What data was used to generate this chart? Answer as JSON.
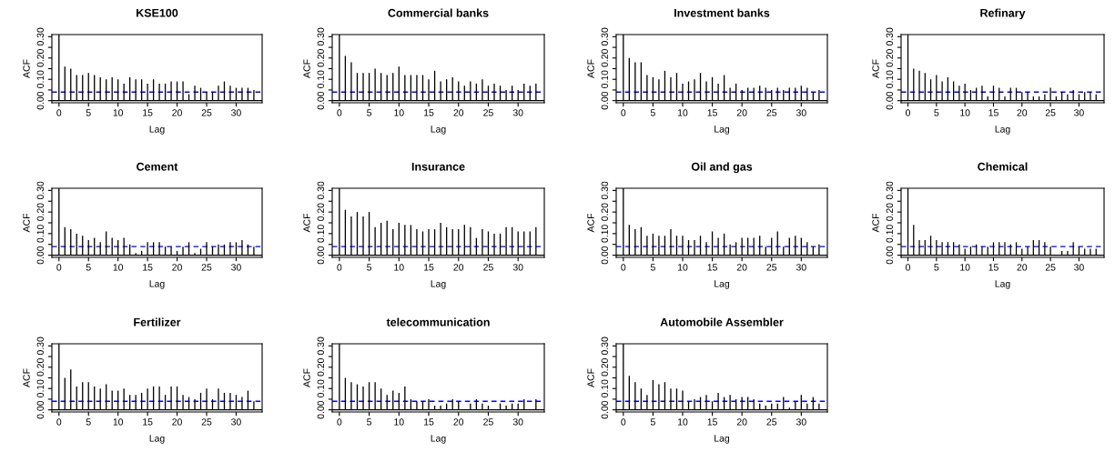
{
  "chart_data": [
    {
      "type": "bar",
      "title": "KSE100",
      "xlabel": "Lag",
      "ylabel": "ACF",
      "x": [
        0,
        1,
        2,
        3,
        4,
        5,
        6,
        7,
        8,
        9,
        10,
        11,
        12,
        13,
        14,
        15,
        16,
        17,
        18,
        19,
        20,
        21,
        22,
        23,
        24,
        25,
        26,
        27,
        28,
        29,
        30,
        31,
        32,
        33
      ],
      "color": "#000000",
      "values": [
        0.31,
        0.16,
        0.15,
        0.12,
        0.12,
        0.13,
        0.12,
        0.11,
        0.1,
        0.11,
        0.1,
        0.08,
        0.11,
        0.1,
        0.1,
        0.08,
        0.1,
        0.08,
        0.08,
        0.09,
        0.09,
        0.09,
        0.03,
        0.07,
        0.06,
        0.04,
        0.04,
        0.07,
        0.09,
        0.07,
        0.06,
        0.06,
        0.06,
        0.05
      ],
      "xlim": [
        -1.2,
        34.4
      ],
      "ylim": [
        -0.01,
        0.31
      ],
      "xticks": [
        0,
        5,
        10,
        15,
        20,
        25,
        30
      ],
      "yticks": [
        {
          "value": 0,
          "label": "0.00"
        },
        {
          "value": 0.05,
          "label": null
        },
        {
          "value": 0.1,
          "label": "0.10"
        },
        {
          "value": 0.15,
          "label": null
        },
        {
          "value": 0.2,
          "label": "0.20"
        },
        {
          "value": 0.25,
          "label": null
        },
        {
          "value": 0.3,
          "label": "0.30"
        }
      ],
      "ref_lines": [
        {
          "axis": "y",
          "value": 0,
          "color": "#000000",
          "line_style": "solid"
        },
        {
          "axis": "y",
          "value": 0.04,
          "color": "#0000ff",
          "line_style": "dashed"
        }
      ],
      "grid": false,
      "legend": false
    },
    {
      "type": "bar",
      "title": "Commercial banks",
      "xlabel": "Lag",
      "ylabel": "ACF",
      "x": [
        0,
        1,
        2,
        3,
        4,
        5,
        6,
        7,
        8,
        9,
        10,
        11,
        12,
        13,
        14,
        15,
        16,
        17,
        18,
        19,
        20,
        21,
        22,
        23,
        24,
        25,
        26,
        27,
        28,
        29,
        30,
        31,
        32,
        33
      ],
      "color": "#000000",
      "values": [
        0.31,
        0.21,
        0.18,
        0.13,
        0.13,
        0.13,
        0.15,
        0.13,
        0.12,
        0.13,
        0.16,
        0.12,
        0.12,
        0.12,
        0.12,
        0.1,
        0.14,
        0.09,
        0.1,
        0.11,
        0.09,
        0.07,
        0.09,
        0.08,
        0.1,
        0.07,
        0.08,
        0.07,
        0.05,
        0.07,
        0.05,
        0.08,
        0.07,
        0.08
      ],
      "xlim": [
        -1.2,
        34.4
      ],
      "ylim": [
        -0.01,
        0.31
      ],
      "xticks": [
        0,
        5,
        10,
        15,
        20,
        25,
        30
      ],
      "yticks": [
        {
          "value": 0,
          "label": "0.00"
        },
        {
          "value": 0.05,
          "label": null
        },
        {
          "value": 0.1,
          "label": "0.10"
        },
        {
          "value": 0.15,
          "label": null
        },
        {
          "value": 0.2,
          "label": "0.20"
        },
        {
          "value": 0.25,
          "label": null
        },
        {
          "value": 0.3,
          "label": "0.30"
        }
      ],
      "ref_lines": [
        {
          "axis": "y",
          "value": 0,
          "color": "#000000",
          "line_style": "solid"
        },
        {
          "axis": "y",
          "value": 0.04,
          "color": "#0000ff",
          "line_style": "dashed"
        }
      ],
      "grid": false,
      "legend": false
    },
    {
      "type": "bar",
      "title": "Investment banks",
      "xlabel": "Lag",
      "ylabel": "ACF",
      "x": [
        0,
        1,
        2,
        3,
        4,
        5,
        6,
        7,
        8,
        9,
        10,
        11,
        12,
        13,
        14,
        15,
        16,
        17,
        18,
        19,
        20,
        21,
        22,
        23,
        24,
        25,
        26,
        27,
        28,
        29,
        30,
        31,
        32,
        33
      ],
      "color": "#000000",
      "values": [
        0.31,
        0.2,
        0.18,
        0.18,
        0.12,
        0.11,
        0.1,
        0.14,
        0.11,
        0.13,
        0.08,
        0.09,
        0.1,
        0.13,
        0.09,
        0.11,
        0.08,
        0.12,
        0.06,
        0.08,
        0.05,
        0.06,
        0.06,
        0.07,
        0.06,
        0.05,
        0.06,
        0.05,
        0.06,
        0.06,
        0.07,
        0.06,
        0.04,
        0.05
      ],
      "xlim": [
        -1.2,
        34.4
      ],
      "ylim": [
        -0.01,
        0.31
      ],
      "xticks": [
        0,
        5,
        10,
        15,
        20,
        25,
        30
      ],
      "yticks": [
        {
          "value": 0,
          "label": "0.00"
        },
        {
          "value": 0.05,
          "label": null
        },
        {
          "value": 0.1,
          "label": "0.10"
        },
        {
          "value": 0.15,
          "label": null
        },
        {
          "value": 0.2,
          "label": "0.20"
        },
        {
          "value": 0.25,
          "label": null
        },
        {
          "value": 0.3,
          "label": "0.30"
        }
      ],
      "ref_lines": [
        {
          "axis": "y",
          "value": 0,
          "color": "#000000",
          "line_style": "solid"
        },
        {
          "axis": "y",
          "value": 0.04,
          "color": "#0000ff",
          "line_style": "dashed"
        }
      ],
      "grid": false,
      "legend": false
    },
    {
      "type": "bar",
      "title": "Refinary",
      "xlabel": "Lag",
      "ylabel": "ACF",
      "x": [
        0,
        1,
        2,
        3,
        4,
        5,
        6,
        7,
        8,
        9,
        10,
        11,
        12,
        13,
        14,
        15,
        16,
        17,
        18,
        19,
        20,
        21,
        22,
        23,
        24,
        25,
        26,
        27,
        28,
        29,
        30,
        31,
        32,
        33
      ],
      "color": "#000000",
      "values": [
        0.31,
        0.15,
        0.14,
        0.13,
        0.1,
        0.12,
        0.09,
        0.11,
        0.09,
        0.07,
        0.08,
        0.05,
        0.06,
        0.07,
        0.02,
        0.07,
        0.06,
        0.02,
        0.06,
        0.06,
        0.04,
        0.04,
        0.02,
        0.02,
        0.03,
        0.06,
        0.02,
        0.04,
        0.03,
        0.05,
        0.03,
        0.04,
        0.04,
        0.03
      ],
      "xlim": [
        -1.2,
        34.4
      ],
      "ylim": [
        -0.01,
        0.31
      ],
      "xticks": [
        0,
        5,
        10,
        15,
        20,
        25,
        30
      ],
      "yticks": [
        {
          "value": 0,
          "label": "0.00"
        },
        {
          "value": 0.05,
          "label": null
        },
        {
          "value": 0.1,
          "label": "0.10"
        },
        {
          "value": 0.15,
          "label": null
        },
        {
          "value": 0.2,
          "label": "0.20"
        },
        {
          "value": 0.25,
          "label": null
        },
        {
          "value": 0.3,
          "label": "0.30"
        }
      ],
      "ref_lines": [
        {
          "axis": "y",
          "value": 0,
          "color": "#000000",
          "line_style": "solid"
        },
        {
          "axis": "y",
          "value": 0.04,
          "color": "#0000ff",
          "line_style": "dashed"
        }
      ],
      "grid": false,
      "legend": false
    },
    {
      "type": "bar",
      "title": "Cement",
      "xlabel": "Lag",
      "ylabel": "ACF",
      "x": [
        0,
        1,
        2,
        3,
        4,
        5,
        6,
        7,
        8,
        9,
        10,
        11,
        12,
        13,
        14,
        15,
        16,
        17,
        18,
        19,
        20,
        21,
        22,
        23,
        24,
        25,
        26,
        27,
        28,
        29,
        30,
        31,
        32,
        33
      ],
      "color": "#000000",
      "values": [
        0.31,
        0.13,
        0.12,
        0.1,
        0.09,
        0.07,
        0.08,
        0.06,
        0.11,
        0.08,
        0.07,
        0.08,
        0.05,
        0.01,
        0.02,
        0.06,
        0.06,
        0.06,
        0.04,
        0.04,
        0.02,
        0.04,
        0.06,
        0.01,
        0.03,
        0.06,
        0.04,
        0.05,
        0.05,
        0.06,
        0.06,
        0.07,
        0.05,
        0.04
      ],
      "xlim": [
        -1.2,
        34.4
      ],
      "ylim": [
        -0.01,
        0.31
      ],
      "xticks": [
        0,
        5,
        10,
        15,
        20,
        25,
        30
      ],
      "yticks": [
        {
          "value": 0,
          "label": "0.00"
        },
        {
          "value": 0.05,
          "label": null
        },
        {
          "value": 0.1,
          "label": "0.10"
        },
        {
          "value": 0.15,
          "label": null
        },
        {
          "value": 0.2,
          "label": "0.20"
        },
        {
          "value": 0.25,
          "label": null
        },
        {
          "value": 0.3,
          "label": "0.30"
        }
      ],
      "ref_lines": [
        {
          "axis": "y",
          "value": 0,
          "color": "#000000",
          "line_style": "solid"
        },
        {
          "axis": "y",
          "value": 0.04,
          "color": "#0000ff",
          "line_style": "dashed"
        }
      ],
      "grid": false,
      "legend": false
    },
    {
      "type": "bar",
      "title": "Insurance",
      "xlabel": "Lag",
      "ylabel": "ACF",
      "x": [
        0,
        1,
        2,
        3,
        4,
        5,
        6,
        7,
        8,
        9,
        10,
        11,
        12,
        13,
        14,
        15,
        16,
        17,
        18,
        19,
        20,
        21,
        22,
        23,
        24,
        25,
        26,
        27,
        28,
        29,
        30,
        31,
        32,
        33
      ],
      "color": "#000000",
      "values": [
        0.31,
        0.21,
        0.18,
        0.2,
        0.18,
        0.2,
        0.13,
        0.15,
        0.16,
        0.12,
        0.15,
        0.14,
        0.14,
        0.12,
        0.11,
        0.12,
        0.12,
        0.15,
        0.13,
        0.12,
        0.12,
        0.14,
        0.13,
        0.08,
        0.12,
        0.11,
        0.1,
        0.1,
        0.13,
        0.13,
        0.11,
        0.11,
        0.11,
        0.13
      ],
      "xlim": [
        -1.2,
        34.4
      ],
      "ylim": [
        -0.01,
        0.31
      ],
      "xticks": [
        0,
        5,
        10,
        15,
        20,
        25,
        30
      ],
      "yticks": [
        {
          "value": 0,
          "label": "0.00"
        },
        {
          "value": 0.05,
          "label": null
        },
        {
          "value": 0.1,
          "label": "0.10"
        },
        {
          "value": 0.15,
          "label": null
        },
        {
          "value": 0.2,
          "label": "0.20"
        },
        {
          "value": 0.25,
          "label": null
        },
        {
          "value": 0.3,
          "label": "0.30"
        }
      ],
      "ref_lines": [
        {
          "axis": "y",
          "value": 0,
          "color": "#000000",
          "line_style": "solid"
        },
        {
          "axis": "y",
          "value": 0.04,
          "color": "#0000ff",
          "line_style": "dashed"
        }
      ],
      "grid": false,
      "legend": false
    },
    {
      "type": "bar",
      "title": "Oil and gas",
      "xlabel": "Lag",
      "ylabel": "ACF",
      "x": [
        0,
        1,
        2,
        3,
        4,
        5,
        6,
        7,
        8,
        9,
        10,
        11,
        12,
        13,
        14,
        15,
        16,
        17,
        18,
        19,
        20,
        21,
        22,
        23,
        24,
        25,
        26,
        27,
        28,
        29,
        30,
        31,
        32,
        33
      ],
      "color": "#000000",
      "values": [
        0.31,
        0.14,
        0.12,
        0.13,
        0.09,
        0.1,
        0.09,
        0.09,
        0.12,
        0.09,
        0.09,
        0.07,
        0.07,
        0.09,
        0.06,
        0.11,
        0.08,
        0.1,
        0.05,
        0.06,
        0.08,
        0.08,
        0.08,
        0.09,
        0.04,
        0.08,
        0.11,
        0.04,
        0.08,
        0.09,
        0.08,
        0.06,
        0.04,
        0.05
      ],
      "xlim": [
        -1.2,
        34.4
      ],
      "ylim": [
        -0.01,
        0.31
      ],
      "xticks": [
        0,
        5,
        10,
        15,
        20,
        25,
        30
      ],
      "yticks": [
        {
          "value": 0,
          "label": "0.00"
        },
        {
          "value": 0.05,
          "label": null
        },
        {
          "value": 0.1,
          "label": "0.10"
        },
        {
          "value": 0.15,
          "label": null
        },
        {
          "value": 0.2,
          "label": "0.20"
        },
        {
          "value": 0.25,
          "label": null
        },
        {
          "value": 0.3,
          "label": "0.30"
        }
      ],
      "ref_lines": [
        {
          "axis": "y",
          "value": 0,
          "color": "#000000",
          "line_style": "solid"
        },
        {
          "axis": "y",
          "value": 0.04,
          "color": "#0000ff",
          "line_style": "dashed"
        }
      ],
      "grid": false,
      "legend": false
    },
    {
      "type": "bar",
      "title": "Chemical",
      "xlabel": "Lag",
      "ylabel": "ACF",
      "x": [
        0,
        1,
        2,
        3,
        4,
        5,
        6,
        7,
        8,
        9,
        10,
        11,
        12,
        13,
        14,
        15,
        16,
        17,
        18,
        19,
        20,
        21,
        22,
        23,
        24,
        25,
        26,
        27,
        28,
        29,
        30,
        31,
        32,
        33
      ],
      "color": "#000000",
      "values": [
        0.31,
        0.14,
        0.07,
        0.07,
        0.09,
        0.07,
        0.06,
        0.06,
        0.06,
        0.05,
        0.03,
        0.04,
        0.05,
        0.04,
        0.04,
        0.06,
        0.06,
        0.06,
        0.05,
        0.06,
        0.03,
        0.04,
        0.07,
        0.07,
        0.06,
        0.04,
        0,
        0.02,
        0.02,
        0.06,
        0.04,
        0.03,
        0.03,
        0.03
      ],
      "xlim": [
        -1.2,
        34.4
      ],
      "ylim": [
        -0.01,
        0.31
      ],
      "xticks": [
        0,
        5,
        10,
        15,
        20,
        25,
        30
      ],
      "yticks": [
        {
          "value": 0,
          "label": "0.00"
        },
        {
          "value": 0.05,
          "label": null
        },
        {
          "value": 0.1,
          "label": "0.10"
        },
        {
          "value": 0.15,
          "label": null
        },
        {
          "value": 0.2,
          "label": "0.20"
        },
        {
          "value": 0.25,
          "label": null
        },
        {
          "value": 0.3,
          "label": "0.30"
        }
      ],
      "ref_lines": [
        {
          "axis": "y",
          "value": 0,
          "color": "#000000",
          "line_style": "solid"
        },
        {
          "axis": "y",
          "value": 0.04,
          "color": "#0000ff",
          "line_style": "dashed"
        }
      ],
      "grid": false,
      "legend": false
    },
    {
      "type": "bar",
      "title": "Fertilizer",
      "xlabel": "Lag",
      "ylabel": "ACF",
      "x": [
        0,
        1,
        2,
        3,
        4,
        5,
        6,
        7,
        8,
        9,
        10,
        11,
        12,
        13,
        14,
        15,
        16,
        17,
        18,
        19,
        20,
        21,
        22,
        23,
        24,
        25,
        26,
        27,
        28,
        29,
        30,
        31,
        32,
        33
      ],
      "color": "#000000",
      "values": [
        0.31,
        0.15,
        0.19,
        0.11,
        0.13,
        0.13,
        0.11,
        0.1,
        0.12,
        0.09,
        0.09,
        0.1,
        0.07,
        0.07,
        0.08,
        0.1,
        0.11,
        0.11,
        0.07,
        0.11,
        0.11,
        0.07,
        0.06,
        0.05,
        0.08,
        0.1,
        0.05,
        0.1,
        0.08,
        0.08,
        0.07,
        0.06,
        0.09,
        0.04
      ],
      "xlim": [
        -1.2,
        34.4
      ],
      "ylim": [
        -0.01,
        0.31
      ],
      "xticks": [
        0,
        5,
        10,
        15,
        20,
        25,
        30
      ],
      "yticks": [
        {
          "value": 0,
          "label": "0.00"
        },
        {
          "value": 0.05,
          "label": null
        },
        {
          "value": 0.1,
          "label": "0.10"
        },
        {
          "value": 0.15,
          "label": null
        },
        {
          "value": 0.2,
          "label": "0.20"
        },
        {
          "value": 0.25,
          "label": null
        },
        {
          "value": 0.3,
          "label": "0.30"
        }
      ],
      "ref_lines": [
        {
          "axis": "y",
          "value": 0,
          "color": "#000000",
          "line_style": "solid"
        },
        {
          "axis": "y",
          "value": 0.04,
          "color": "#0000ff",
          "line_style": "dashed"
        }
      ],
      "grid": false,
      "legend": false
    },
    {
      "type": "bar",
      "title": "telecommunication",
      "xlabel": "Lag",
      "ylabel": "ACF",
      "x": [
        0,
        1,
        2,
        3,
        4,
        5,
        6,
        7,
        8,
        9,
        10,
        11,
        12,
        13,
        14,
        15,
        16,
        17,
        18,
        19,
        20,
        21,
        22,
        23,
        24,
        25,
        26,
        27,
        28,
        29,
        30,
        31,
        32,
        33
      ],
      "color": "#000000",
      "values": [
        0.31,
        0.15,
        0.13,
        0.12,
        0.11,
        0.13,
        0.13,
        0.1,
        0.07,
        0.09,
        0.08,
        0.11,
        0.05,
        0.04,
        0.04,
        0.05,
        0.02,
        0.02,
        0.03,
        0.05,
        0.04,
        0,
        0.03,
        0.05,
        0.03,
        0.02,
        0,
        0.03,
        0.02,
        0.03,
        0.03,
        0.05,
        0,
        0.05
      ],
      "xlim": [
        -1.2,
        34.4
      ],
      "ylim": [
        -0.01,
        0.31
      ],
      "xticks": [
        0,
        5,
        10,
        15,
        20,
        25,
        30
      ],
      "yticks": [
        {
          "value": 0,
          "label": "0.00"
        },
        {
          "value": 0.05,
          "label": null
        },
        {
          "value": 0.1,
          "label": "0.10"
        },
        {
          "value": 0.15,
          "label": null
        },
        {
          "value": 0.2,
          "label": "0.20"
        },
        {
          "value": 0.25,
          "label": null
        },
        {
          "value": 0.3,
          "label": "0.30"
        }
      ],
      "ref_lines": [
        {
          "axis": "y",
          "value": 0,
          "color": "#000000",
          "line_style": "solid"
        },
        {
          "axis": "y",
          "value": 0.04,
          "color": "#0000ff",
          "line_style": "dashed"
        }
      ],
      "grid": false,
      "legend": false
    },
    {
      "type": "bar",
      "title": "Automobile Assembler",
      "xlabel": "Lag",
      "ylabel": "ACF",
      "x": [
        0,
        1,
        2,
        3,
        4,
        5,
        6,
        7,
        8,
        9,
        10,
        11,
        12,
        13,
        14,
        15,
        16,
        17,
        18,
        19,
        20,
        21,
        22,
        23,
        24,
        25,
        26,
        27,
        28,
        29,
        30,
        31,
        32,
        33
      ],
      "color": "#000000",
      "values": [
        0.31,
        0.16,
        0.13,
        0.1,
        0.07,
        0.14,
        0.12,
        0.13,
        0.1,
        0.1,
        0.09,
        0.04,
        0.05,
        0.06,
        0.07,
        0.04,
        0.08,
        0.06,
        0.07,
        0.05,
        0.06,
        0.06,
        0.05,
        0.03,
        0.02,
        0.03,
        0.03,
        0.06,
        0.01,
        0.04,
        0.07,
        0.03,
        0.06,
        0.03
      ],
      "xlim": [
        -1.2,
        34.4
      ],
      "ylim": [
        -0.01,
        0.31
      ],
      "xticks": [
        0,
        5,
        10,
        15,
        20,
        25,
        30
      ],
      "yticks": [
        {
          "value": 0,
          "label": "0.00"
        },
        {
          "value": 0.05,
          "label": null
        },
        {
          "value": 0.1,
          "label": "0.10"
        },
        {
          "value": 0.15,
          "label": null
        },
        {
          "value": 0.2,
          "label": "0.20"
        },
        {
          "value": 0.25,
          "label": null
        },
        {
          "value": 0.3,
          "label": "0.30"
        }
      ],
      "ref_lines": [
        {
          "axis": "y",
          "value": 0,
          "color": "#000000",
          "line_style": "solid"
        },
        {
          "axis": "y",
          "value": 0.04,
          "color": "#0000ff",
          "line_style": "dashed"
        }
      ],
      "grid": false,
      "legend": false
    }
  ]
}
